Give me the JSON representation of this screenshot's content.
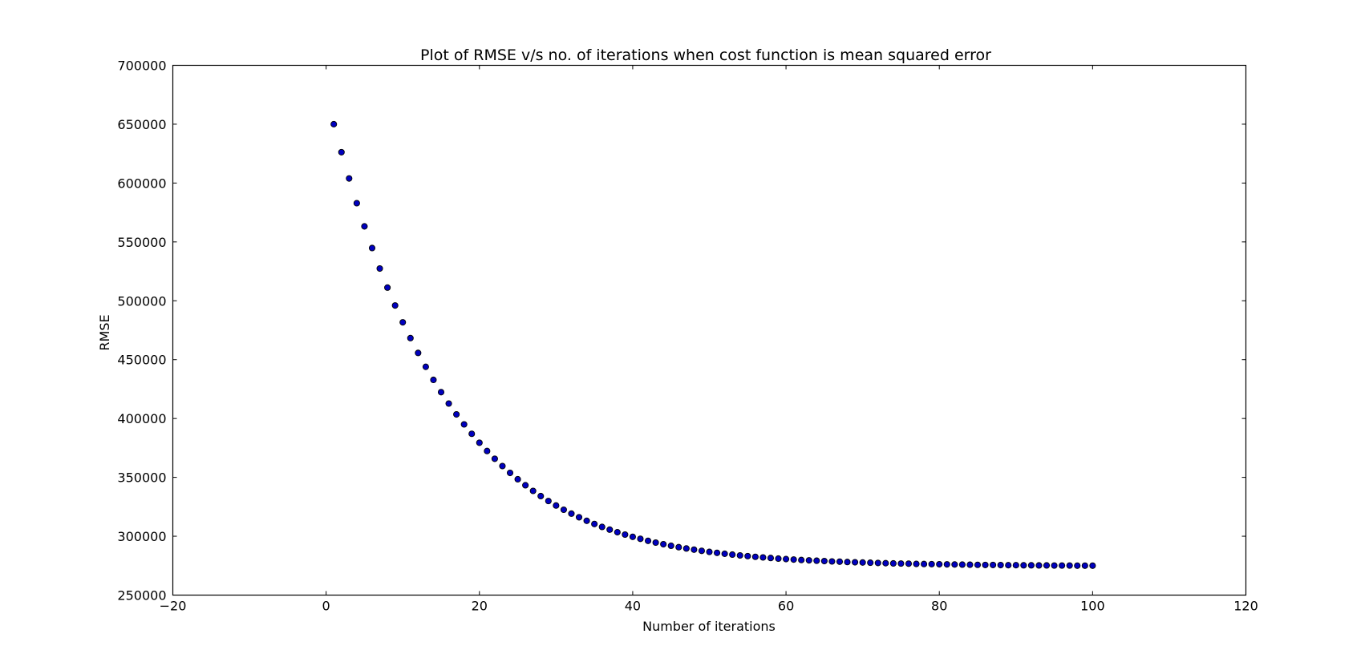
{
  "chart_data": {
    "type": "scatter",
    "title": "Plot of RMSE v/s no. of iterations when cost function is mean squared error",
    "xlabel": "Number of iterations",
    "ylabel": "RMSE",
    "xlim": [
      -20,
      120
    ],
    "ylim": [
      250000,
      700000
    ],
    "xticks": [
      -20,
      0,
      20,
      40,
      60,
      80,
      100,
      120
    ],
    "yticks": [
      250000,
      300000,
      350000,
      400000,
      450000,
      500000,
      550000,
      600000,
      650000,
      700000
    ],
    "xtick_labels": [
      "−20",
      "0",
      "20",
      "40",
      "60",
      "80",
      "100",
      "120"
    ],
    "ytick_labels": [
      "250000",
      "300000",
      "350000",
      "400000",
      "450000",
      "500000",
      "550000",
      "600000",
      "650000",
      "700000"
    ],
    "grid": false,
    "marker_color": "#0000bf",
    "series": [
      {
        "x": [
          1,
          2,
          3,
          4,
          5,
          6,
          7,
          8,
          9,
          10,
          11,
          12,
          13,
          14,
          15,
          16,
          17,
          18,
          19,
          20,
          21,
          22,
          23,
          24,
          25,
          26,
          27,
          28,
          29,
          30,
          31,
          32,
          33,
          34,
          35,
          36,
          37,
          38,
          39,
          40,
          41,
          42,
          43,
          44,
          45,
          46,
          47,
          48,
          49,
          50,
          51,
          52,
          53,
          54,
          55,
          56,
          57,
          58,
          59,
          60,
          61,
          62,
          63,
          64,
          65,
          66,
          67,
          68,
          69,
          70,
          71,
          72,
          73,
          74,
          75,
          76,
          77,
          78,
          79,
          80,
          81,
          82,
          83,
          84,
          85,
          86,
          87,
          88,
          89,
          90,
          91,
          92,
          93,
          94,
          95,
          96,
          97,
          98,
          99,
          100
        ],
        "y": [
          650000,
          626200,
          603900,
          582900,
          563200,
          544800,
          527400,
          511200,
          496000,
          481700,
          468300,
          455700,
          443900,
          432800,
          422400,
          412700,
          403500,
          395000,
          387000,
          379400,
          372400,
          365800,
          359600,
          353800,
          348400,
          343300,
          338500,
          334100,
          329900,
          326100,
          322500,
          319200,
          316100,
          313100,
          310400,
          307900,
          305600,
          303400,
          301400,
          299500,
          297800,
          296100,
          294600,
          293200,
          291900,
          290700,
          289600,
          288600,
          287600,
          286700,
          285900,
          285100,
          284400,
          283700,
          283100,
          282500,
          282000,
          281500,
          281000,
          280600,
          280200,
          279800,
          279500,
          279200,
          278900,
          278600,
          278400,
          278100,
          277900,
          277700,
          277500,
          277300,
          277100,
          276900,
          276800,
          276700,
          276500,
          276400,
          276300,
          276200,
          276100,
          276000,
          275900,
          275800,
          275700,
          275600,
          275600,
          275500,
          275400,
          275400,
          275300,
          275300,
          275200,
          275200,
          275100,
          275100,
          275100,
          275000,
          275000,
          275000
        ]
      }
    ]
  }
}
